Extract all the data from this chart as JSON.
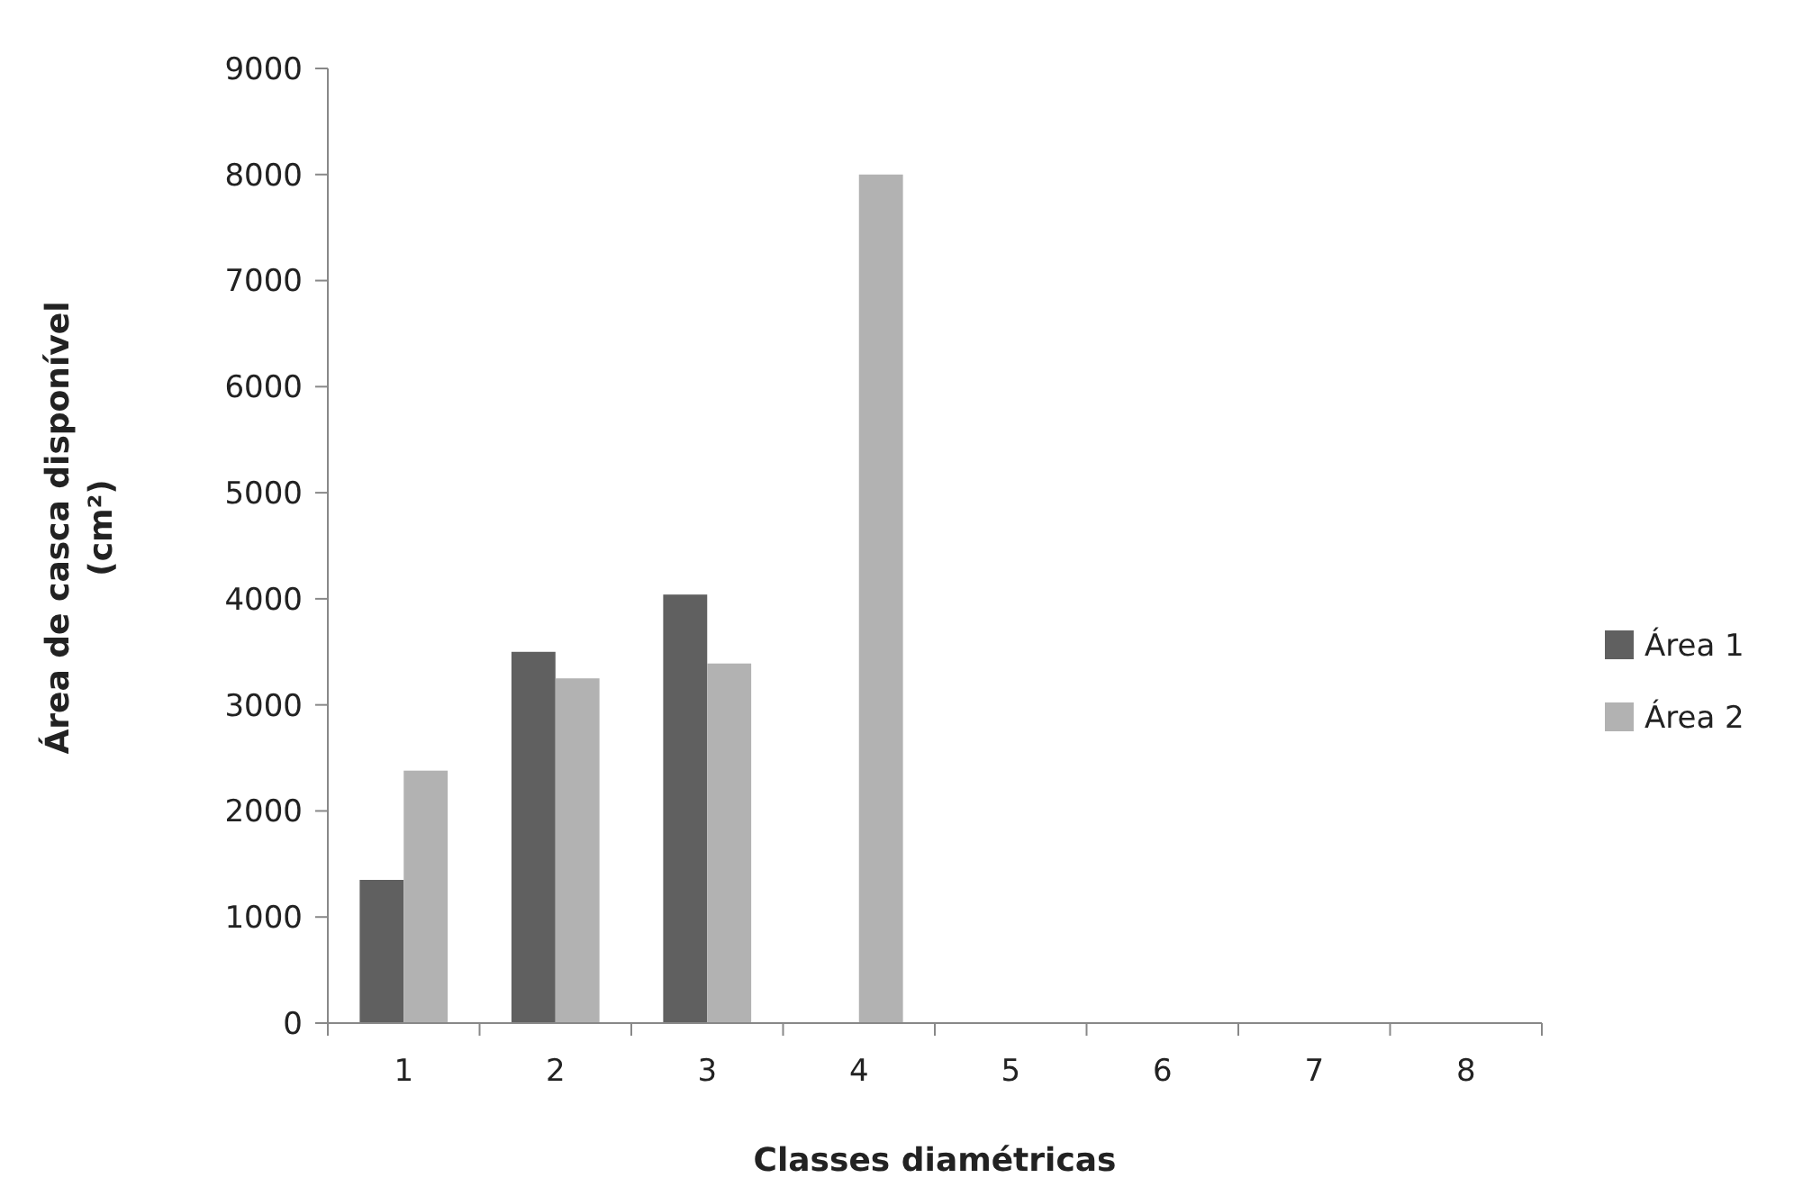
{
  "chart_data": {
    "type": "bar",
    "xlabel": "Classes diamétricas",
    "ylabel": "Área de casca disponível (cm²)",
    "categories": [
      "1",
      "2",
      "3",
      "4",
      "5",
      "6",
      "7",
      "8"
    ],
    "series": [
      {
        "name": "Área 1",
        "color": "#606060",
        "values": [
          1350,
          3500,
          4040,
          null,
          null,
          null,
          null,
          null
        ]
      },
      {
        "name": "Área 2",
        "color": "#b2b2b2",
        "values": [
          2380,
          3250,
          3390,
          8000,
          null,
          null,
          null,
          null
        ]
      }
    ],
    "ylim": [
      0,
      9000
    ],
    "yticks": [
      0,
      1000,
      2000,
      3000,
      4000,
      5000,
      6000,
      7000,
      8000,
      9000
    ],
    "grid": false,
    "legend": "right"
  }
}
